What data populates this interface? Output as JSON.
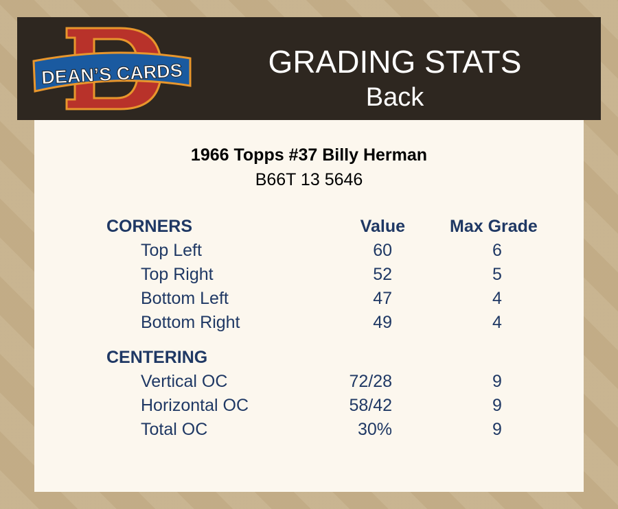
{
  "header": {
    "logo_text": "DEAN'S CARDS",
    "title": "GRADING STATS",
    "subtitle": "Back"
  },
  "card": {
    "name": "1966 Topps #37 Billy Herman",
    "cert": "B66T 13 5646"
  },
  "columns": {
    "value": "Value",
    "max": "Max Grade"
  },
  "sections": [
    {
      "title": "CORNERS",
      "rows": [
        {
          "label": "Top Left",
          "value": "60",
          "max": "6"
        },
        {
          "label": "Top Right",
          "value": "52",
          "max": "5"
        },
        {
          "label": "Bottom Left",
          "value": "47",
          "max": "4"
        },
        {
          "label": "Bottom Right",
          "value": "49",
          "max": "4"
        }
      ]
    },
    {
      "title": "CENTERING",
      "rows": [
        {
          "label": "Vertical OC",
          "value": "72/28",
          "max": "9"
        },
        {
          "label": "Horizontal OC",
          "value": "58/42",
          "max": "9"
        },
        {
          "label": "Total OC",
          "value": "30%",
          "max": "9"
        }
      ]
    }
  ],
  "colors": {
    "header_bg": "#2e2720",
    "panel_bg": "#fcf7ee",
    "text": "#1f3864"
  }
}
